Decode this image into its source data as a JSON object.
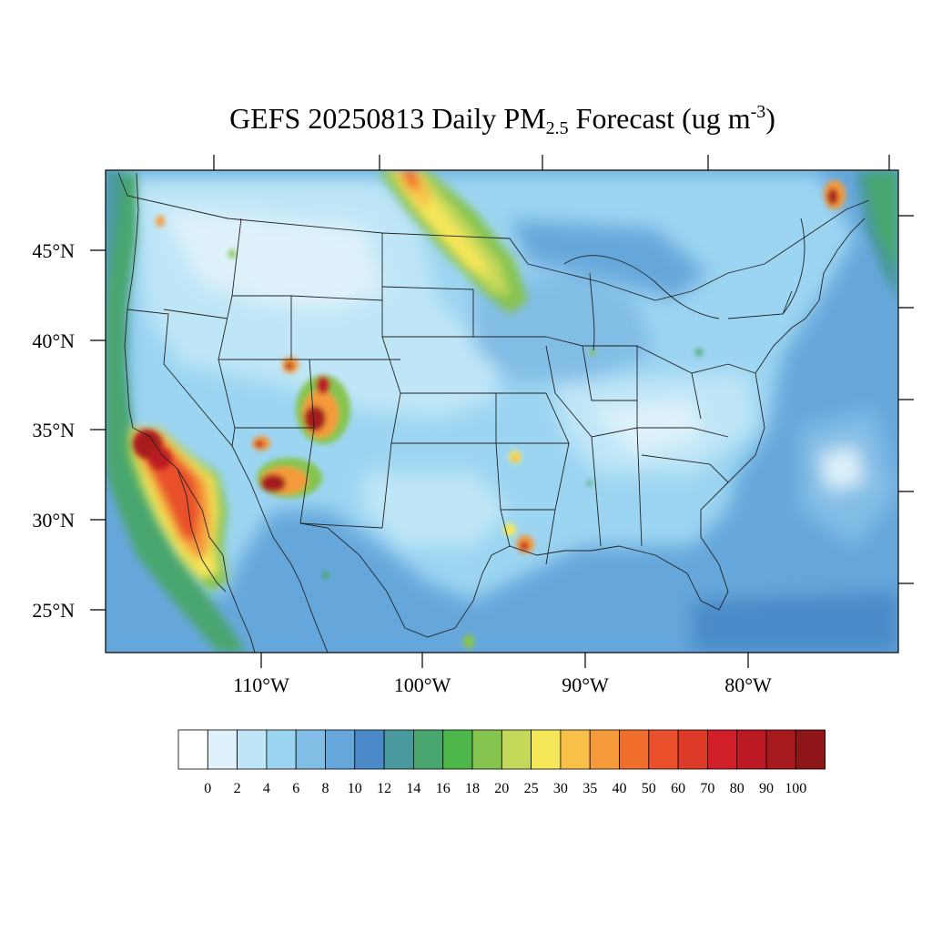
{
  "title": {
    "prefix": "GEFS 20250813 Daily PM",
    "sub": "2.5",
    "mid": " Forecast (ug m",
    "sup": "-3",
    "suffix": ")"
  },
  "map": {
    "lat_labels": [
      "45°N",
      "40°N",
      "35°N",
      "30°N",
      "25°N"
    ],
    "lon_labels": [
      "110°W",
      "100°W",
      "90°W",
      "80°W"
    ]
  },
  "colorbar": {
    "colors": [
      "#ffffff",
      "#dff2fb",
      "#bfe6f7",
      "#9cd5f2",
      "#82bde6",
      "#66a7db",
      "#4a8ac8",
      "#4a9a9d",
      "#48a66e",
      "#4cb648",
      "#86c450",
      "#c4d85a",
      "#f5e65a",
      "#f8c048",
      "#f59a3a",
      "#f06d2c",
      "#e84f2a",
      "#dd3a28",
      "#d01f28",
      "#bb1a24",
      "#a61a1e",
      "#8e1518"
    ],
    "labels": [
      "0",
      "2",
      "4",
      "6",
      "8",
      "10",
      "12",
      "14",
      "16",
      "18",
      "20",
      "25",
      "30",
      "35",
      "40",
      "50",
      "60",
      "70",
      "80",
      "90",
      "100"
    ]
  }
}
